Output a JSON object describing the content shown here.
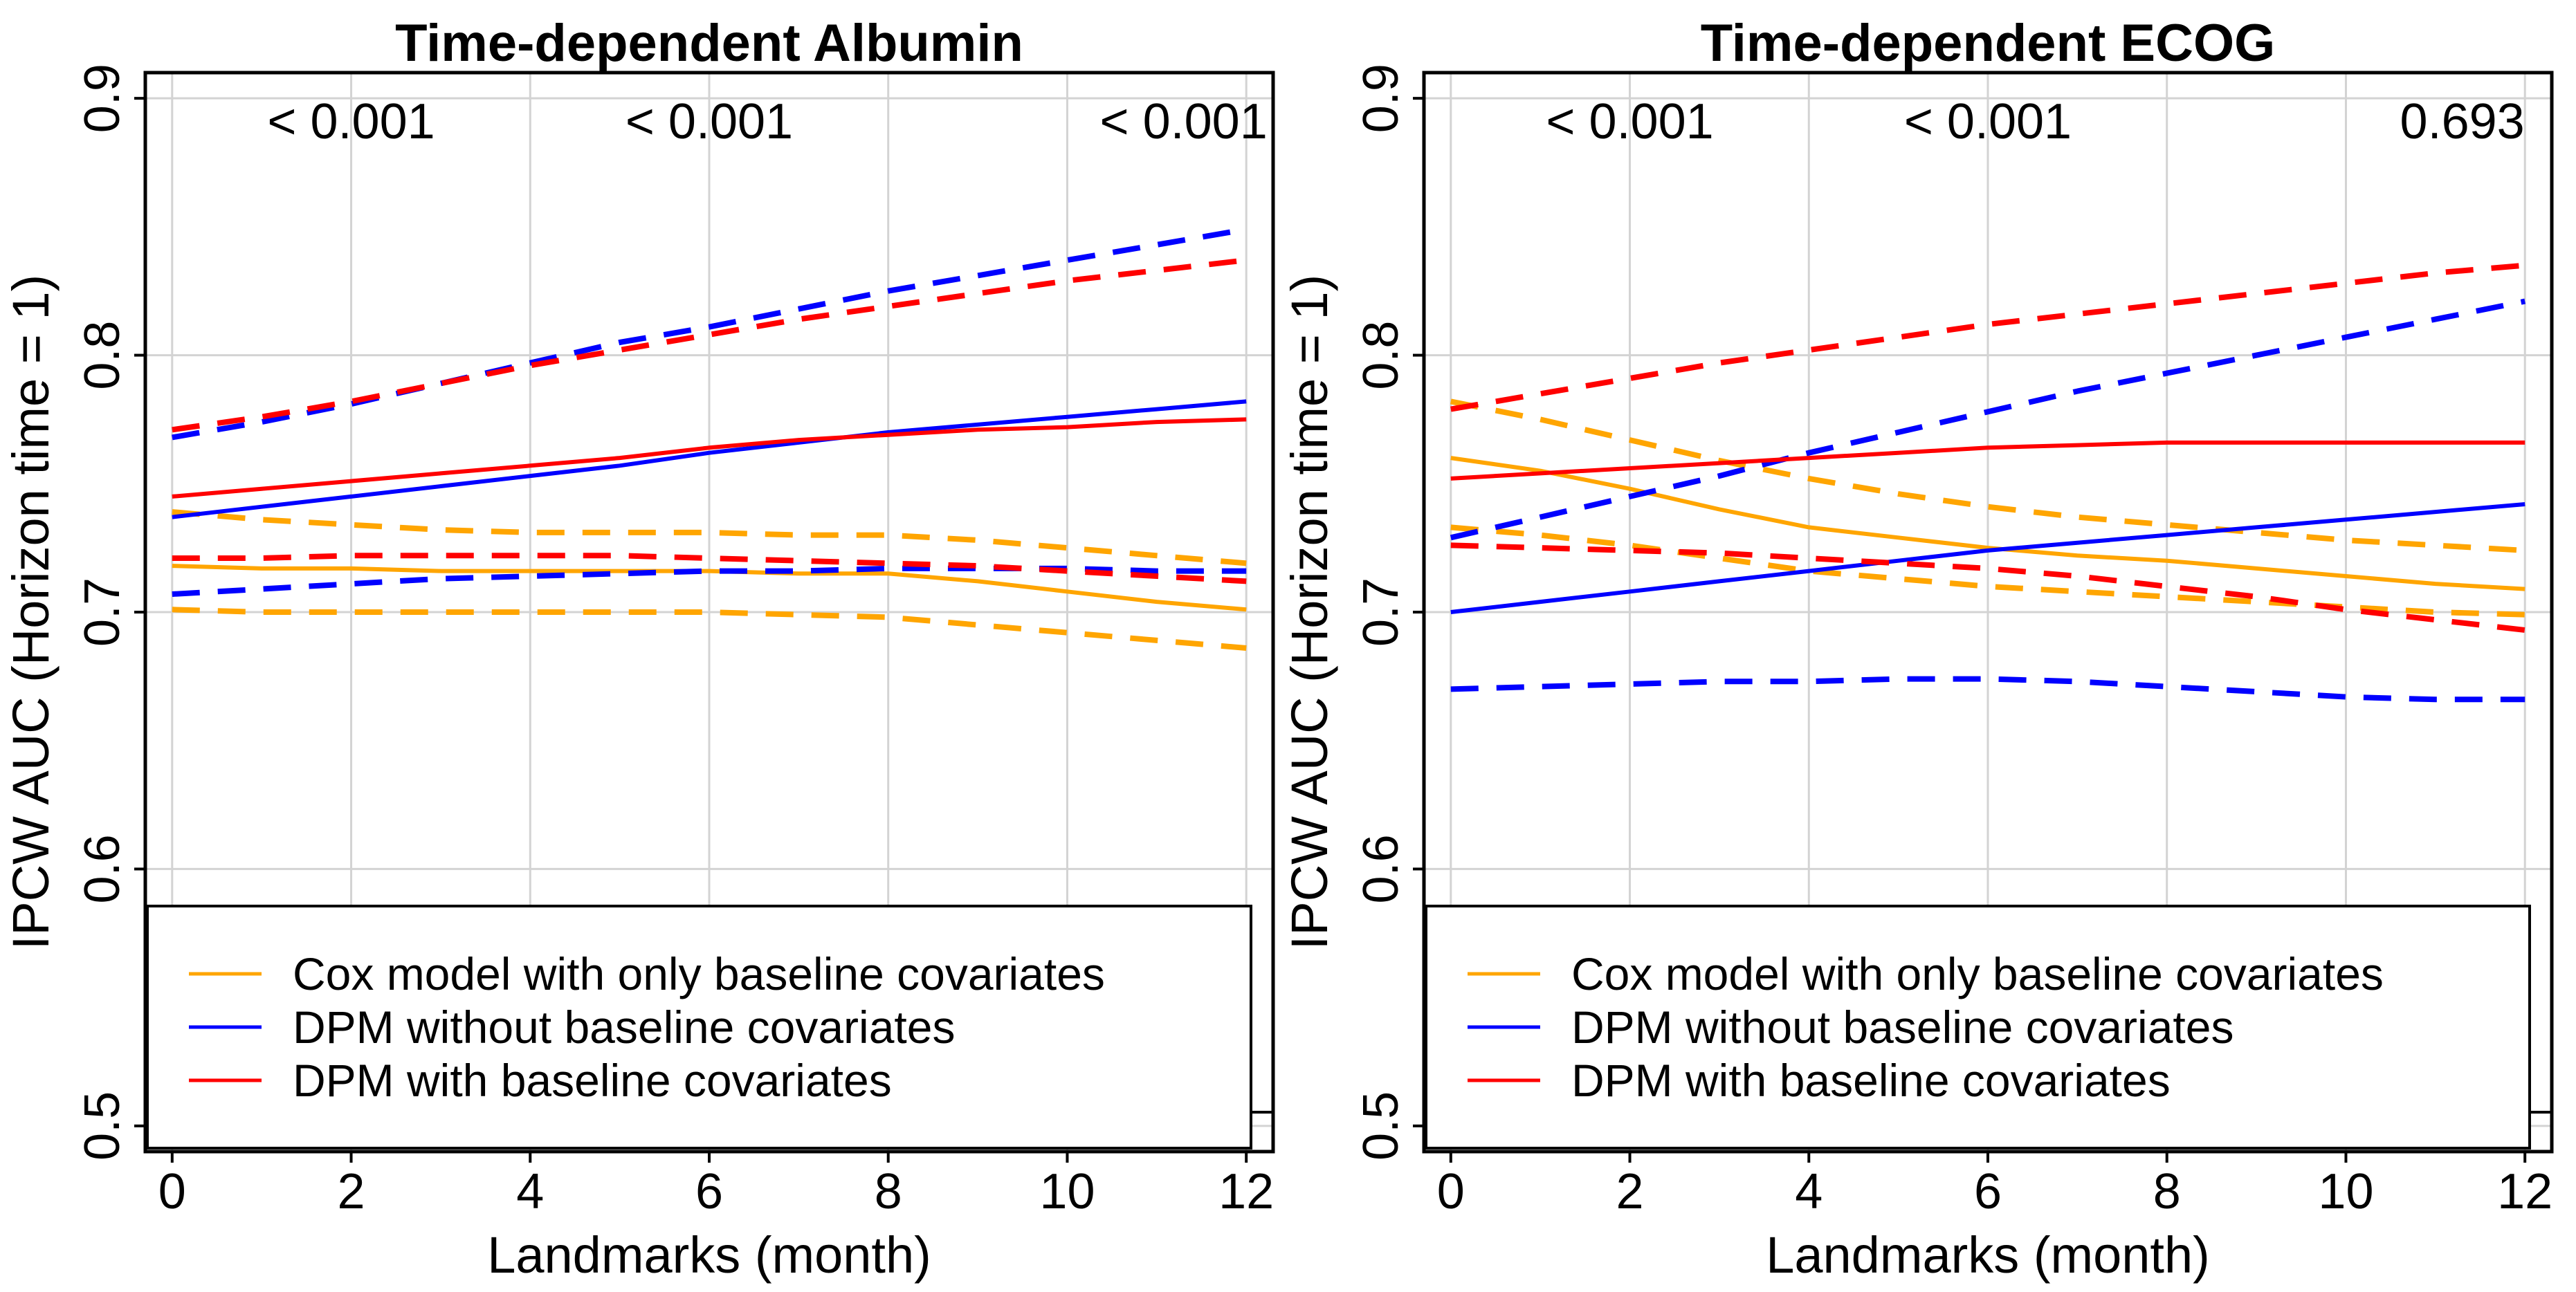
{
  "chart_data": [
    {
      "type": "line",
      "title": "Time-dependent Albumin",
      "xlabel": "Landmarks (month)",
      "ylabel": "IPCW AUC (Horizon time = 1)",
      "xlim": [
        -0.3,
        12.3
      ],
      "ylim": [
        0.49,
        0.91
      ],
      "xticks": [
        0,
        2,
        4,
        6,
        8,
        10,
        12
      ],
      "yticks": [
        0.5,
        0.6,
        0.7,
        0.8,
        0.9
      ],
      "ytick_labels": [
        "0.5",
        "0.6",
        "0.7",
        "0.8",
        "0.9"
      ],
      "grid": true,
      "x": [
        0,
        1,
        2,
        3,
        4,
        5,
        6,
        7,
        8,
        9,
        10,
        11,
        12
      ],
      "pvalues": [
        {
          "x": 2,
          "label": "< 0.001"
        },
        {
          "x": 6,
          "label": "< 0.001"
        },
        {
          "x": 11.3,
          "label": "< 0.001"
        }
      ],
      "legend": [
        {
          "label": "Cox model with only baseline covariates",
          "color": "#FFA500"
        },
        {
          "label": "DPM without baseline covariates",
          "color": "#0000FF"
        },
        {
          "label": "DPM with baseline covariates",
          "color": "#FF0000"
        }
      ],
      "series": [
        {
          "name": "Cox model with only baseline covariates",
          "color": "#FFA500",
          "dash": false,
          "values": [
            0.718,
            0.717,
            0.717,
            0.716,
            0.716,
            0.716,
            0.716,
            0.715,
            0.715,
            0.712,
            0.708,
            0.704,
            0.701
          ]
        },
        {
          "name": "Cox model with only baseline covariates (upper CI)",
          "color": "#FFA500",
          "dash": true,
          "values": [
            0.739,
            0.736,
            0.734,
            0.732,
            0.731,
            0.731,
            0.731,
            0.73,
            0.73,
            0.728,
            0.725,
            0.722,
            0.719
          ]
        },
        {
          "name": "Cox model with only baseline covariates (lower CI)",
          "color": "#FFA500",
          "dash": true,
          "values": [
            0.701,
            0.7,
            0.7,
            0.7,
            0.7,
            0.7,
            0.7,
            0.699,
            0.698,
            0.695,
            0.692,
            0.689,
            0.686
          ]
        },
        {
          "name": "DPM without baseline covariates",
          "color": "#0000FF",
          "dash": false,
          "values": [
            0.737,
            0.741,
            0.745,
            0.749,
            0.753,
            0.757,
            0.762,
            0.766,
            0.77,
            0.773,
            0.776,
            0.779,
            0.782
          ]
        },
        {
          "name": "DPM without baseline covariates (upper CI)",
          "color": "#0000FF",
          "dash": true,
          "values": [
            0.768,
            0.774,
            0.781,
            0.789,
            0.797,
            0.805,
            0.811,
            0.818,
            0.825,
            0.831,
            0.837,
            0.843,
            0.849
          ]
        },
        {
          "name": "DPM without baseline covariates (lower CI)",
          "color": "#0000FF",
          "dash": true,
          "values": [
            0.707,
            0.709,
            0.711,
            0.713,
            0.714,
            0.715,
            0.716,
            0.716,
            0.717,
            0.717,
            0.717,
            0.716,
            0.716
          ]
        },
        {
          "name": "DPM with baseline covariates",
          "color": "#FF0000",
          "dash": false,
          "values": [
            0.745,
            0.748,
            0.751,
            0.754,
            0.757,
            0.76,
            0.764,
            0.767,
            0.769,
            0.771,
            0.772,
            0.774,
            0.775
          ]
        },
        {
          "name": "DPM with baseline covariates (upper CI)",
          "color": "#FF0000",
          "dash": true,
          "values": [
            0.771,
            0.776,
            0.782,
            0.789,
            0.796,
            0.802,
            0.808,
            0.814,
            0.819,
            0.824,
            0.829,
            0.833,
            0.837
          ]
        },
        {
          "name": "DPM with baseline covariates (lower CI)",
          "color": "#FF0000",
          "dash": true,
          "values": [
            0.721,
            0.721,
            0.722,
            0.722,
            0.722,
            0.722,
            0.721,
            0.72,
            0.719,
            0.718,
            0.716,
            0.714,
            0.712
          ]
        }
      ]
    },
    {
      "type": "line",
      "title": "Time-dependent ECOG",
      "xlabel": "Landmarks (month)",
      "ylabel": "IPCW AUC (Horizon time = 1)",
      "xlim": [
        -0.3,
        12.3
      ],
      "ylim": [
        0.49,
        0.91
      ],
      "xticks": [
        0,
        2,
        4,
        6,
        8,
        10,
        12
      ],
      "yticks": [
        0.5,
        0.6,
        0.7,
        0.8,
        0.9
      ],
      "ytick_labels": [
        "0.5",
        "0.6",
        "0.7",
        "0.8",
        "0.9"
      ],
      "grid": true,
      "x": [
        0,
        1,
        2,
        3,
        4,
        5,
        6,
        7,
        8,
        9,
        10,
        11,
        12
      ],
      "pvalues": [
        {
          "x": 2,
          "label": "< 0.001"
        },
        {
          "x": 6,
          "label": "< 0.001"
        },
        {
          "x": 11.3,
          "label": "0.693"
        }
      ],
      "legend": [
        {
          "label": "Cox model with only baseline covariates",
          "color": "#FFA500"
        },
        {
          "label": "DPM without baseline covariates",
          "color": "#0000FF"
        },
        {
          "label": "DPM with baseline covariates",
          "color": "#FF0000"
        }
      ],
      "series": [
        {
          "name": "Cox model with only baseline covariates",
          "color": "#FFA500",
          "dash": false,
          "values": [
            0.76,
            0.755,
            0.748,
            0.74,
            0.733,
            0.729,
            0.725,
            0.722,
            0.72,
            0.717,
            0.714,
            0.711,
            0.709
          ]
        },
        {
          "name": "Cox model with only baseline covariates (upper CI)",
          "color": "#FFA500",
          "dash": true,
          "values": [
            0.782,
            0.775,
            0.767,
            0.759,
            0.752,
            0.746,
            0.741,
            0.737,
            0.734,
            0.731,
            0.728,
            0.726,
            0.724
          ]
        },
        {
          "name": "Cox model with only baseline covariates (lower CI)",
          "color": "#FFA500",
          "dash": true,
          "values": [
            0.733,
            0.73,
            0.726,
            0.721,
            0.716,
            0.713,
            0.71,
            0.708,
            0.706,
            0.704,
            0.702,
            0.7,
            0.699
          ]
        },
        {
          "name": "DPM without baseline covariates",
          "color": "#0000FF",
          "dash": false,
          "values": [
            0.7,
            0.704,
            0.708,
            0.712,
            0.716,
            0.72,
            0.724,
            0.727,
            0.73,
            0.733,
            0.736,
            0.739,
            0.742
          ]
        },
        {
          "name": "DPM without baseline covariates (upper CI)",
          "color": "#0000FF",
          "dash": true,
          "values": [
            0.729,
            0.737,
            0.745,
            0.753,
            0.762,
            0.77,
            0.778,
            0.786,
            0.793,
            0.8,
            0.807,
            0.814,
            0.821
          ]
        },
        {
          "name": "DPM without baseline covariates (lower CI)",
          "color": "#0000FF",
          "dash": true,
          "values": [
            0.67,
            0.671,
            0.672,
            0.673,
            0.673,
            0.674,
            0.674,
            0.673,
            0.671,
            0.669,
            0.667,
            0.666,
            0.666
          ]
        },
        {
          "name": "DPM with baseline covariates",
          "color": "#FF0000",
          "dash": false,
          "values": [
            0.752,
            0.754,
            0.756,
            0.758,
            0.76,
            0.762,
            0.764,
            0.765,
            0.766,
            0.766,
            0.766,
            0.766,
            0.766
          ]
        },
        {
          "name": "DPM with baseline covariates (upper CI)",
          "color": "#FF0000",
          "dash": true,
          "values": [
            0.779,
            0.785,
            0.791,
            0.797,
            0.802,
            0.807,
            0.812,
            0.816,
            0.82,
            0.824,
            0.828,
            0.832,
            0.835
          ]
        },
        {
          "name": "DPM with baseline covariates (lower CI)",
          "color": "#FF0000",
          "dash": true,
          "values": [
            0.726,
            0.725,
            0.724,
            0.723,
            0.721,
            0.719,
            0.717,
            0.714,
            0.71,
            0.706,
            0.701,
            0.697,
            0.693
          ]
        }
      ]
    }
  ]
}
